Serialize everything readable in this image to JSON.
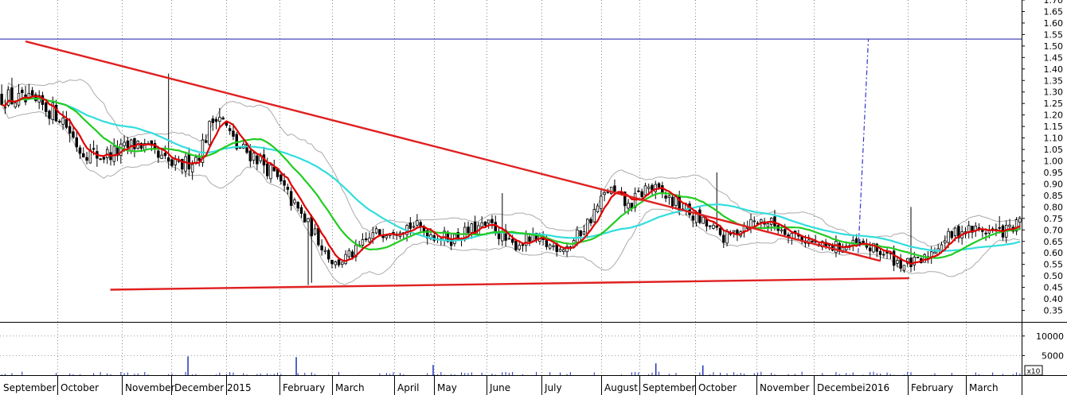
{
  "chart_data": [
    {
      "type": "candlestick",
      "title": "",
      "xlabel": "",
      "ylabel": "",
      "y_axis_position": "right",
      "ylim": [
        0.3,
        1.7
      ],
      "y_ticks": [
        "0.35",
        "0.40",
        "0.45",
        "0.50",
        "0.55",
        "0.60",
        "0.65",
        "0.70",
        "0.75",
        "0.80",
        "0.85",
        "0.90",
        "0.95",
        "1.00",
        "1.05",
        "1.10",
        "1.15",
        "1.20",
        "1.25",
        "1.30",
        "1.35",
        "1.40",
        "1.45",
        "1.50",
        "1.55",
        "1.60",
        "1.65",
        "1.70"
      ],
      "months": [
        "September",
        "October",
        "November",
        "December 2015",
        "February",
        "March",
        "April",
        "May",
        "June",
        "July",
        "August",
        "September",
        "October",
        "November",
        "Decembei2016",
        "February",
        "March"
      ],
      "grid": true,
      "colors": {
        "candle": "#000000",
        "ma_short": "#e00000",
        "ma_mid": "#22cc22",
        "ma_long": "#33dddd",
        "bands": "#aaaaaa",
        "trendline": "#e02020",
        "horizontal_line": "#1a1aaa",
        "projection": "#3333cc"
      },
      "price_anchors": [
        1.28,
        1.26,
        1.24,
        1.2,
        1.05,
        1.02,
        1.04,
        1.08,
        1.01,
        0.97,
        1.02,
        1.22,
        1.06,
        1.02,
        0.93,
        0.8,
        0.68,
        0.55,
        0.6,
        0.68,
        0.71,
        0.72,
        0.68,
        0.66,
        0.7,
        0.72,
        0.63,
        0.66,
        0.63,
        0.63,
        0.74,
        0.88,
        0.8,
        0.89,
        0.84,
        0.78,
        0.72,
        0.66,
        0.73,
        0.74,
        0.7,
        0.66,
        0.62,
        0.63,
        0.63,
        0.6,
        0.55,
        0.56,
        0.65,
        0.7,
        0.7,
        0.69,
        0.72
      ],
      "trendlines": [
        {
          "name": "resistance",
          "from": [
            0.025,
            1.52
          ],
          "to": [
            0.862,
            0.565
          ]
        },
        {
          "name": "support",
          "from": [
            0.108,
            0.44
          ],
          "to": [
            0.89,
            0.49
          ]
        }
      ],
      "horizontal_line": 1.53,
      "projection": {
        "x": [
          0.84,
          0.85
        ],
        "y": [
          0.6,
          1.53
        ]
      },
      "last_close": 0.75
    },
    {
      "type": "bar",
      "name": "volume",
      "y_ticks": [
        "5000",
        "10000"
      ],
      "ylim": [
        0,
        13000
      ],
      "unit_label": "x10",
      "spikes": [
        {
          "x": 0.184,
          "value": 4800
        },
        {
          "x": 0.29,
          "value": 4600
        },
        {
          "x": 0.424,
          "value": 2600
        },
        {
          "x": 0.642,
          "value": 3000
        },
        {
          "x": 0.688,
          "value": 2500
        }
      ]
    }
  ]
}
